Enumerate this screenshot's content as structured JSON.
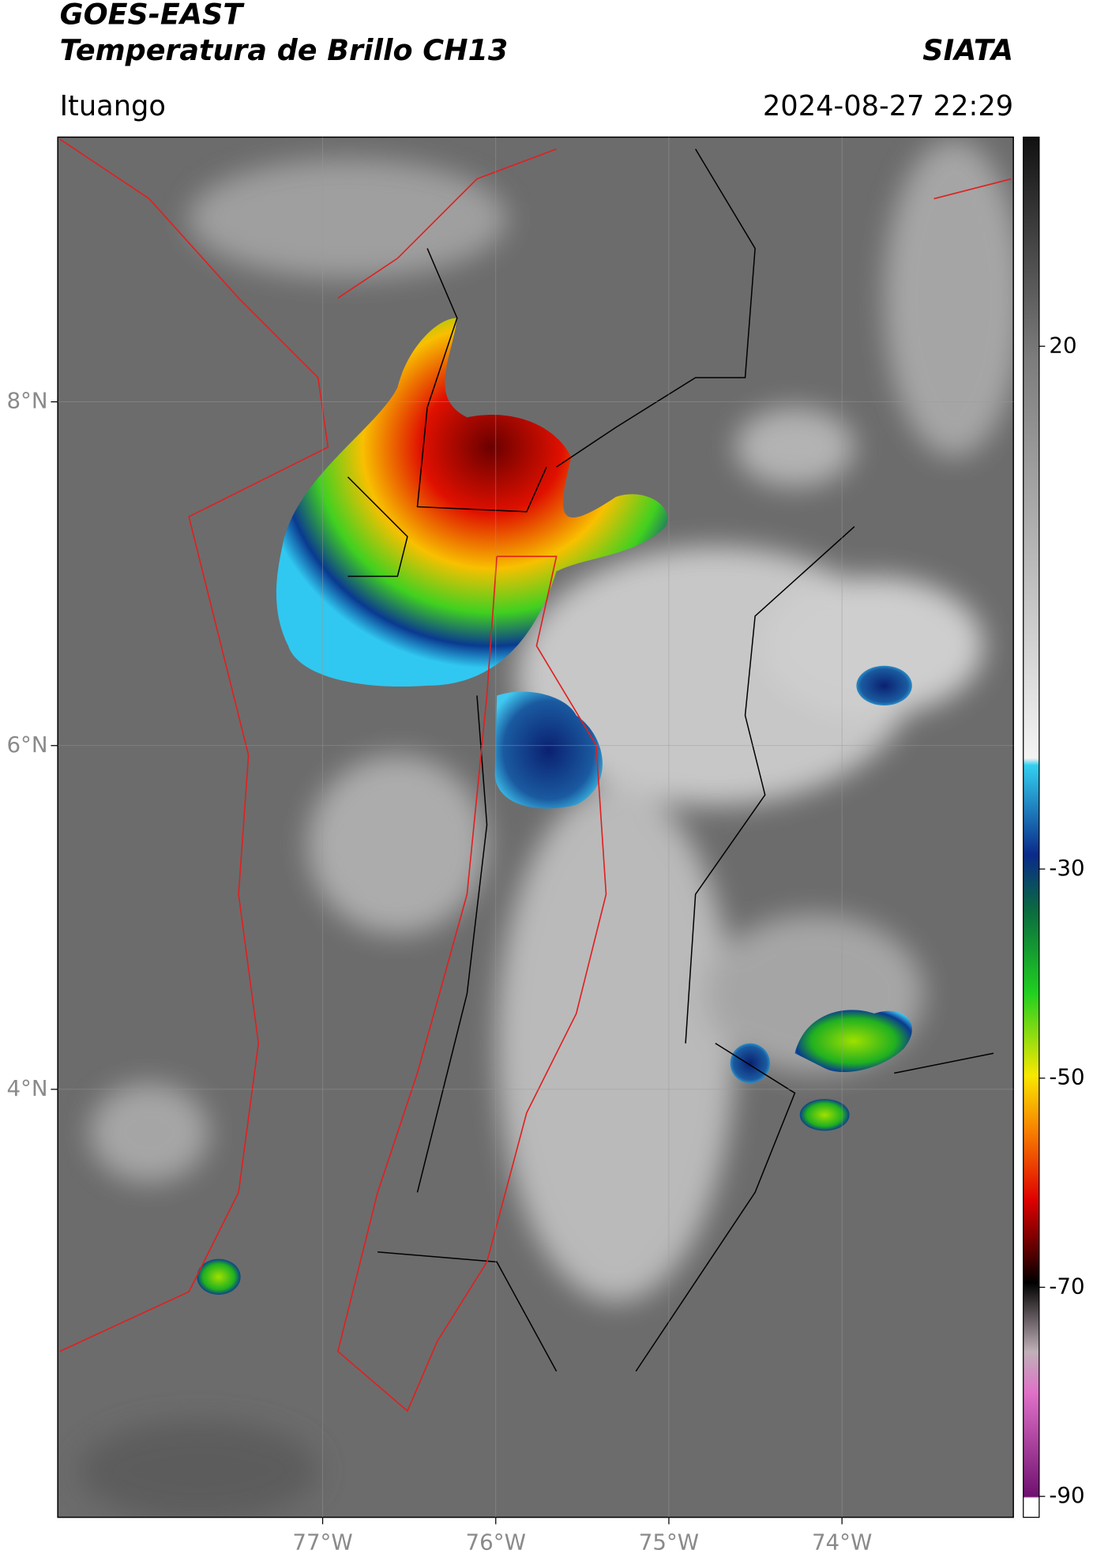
{
  "header": {
    "title": "GOES-EAST",
    "subtitle": "Temperatura de Brillo CH13",
    "agency": "SIATA",
    "location": "Ituango",
    "timestamp": "2024-08-27 22:29"
  },
  "map": {
    "xlim": [
      -78.53,
      -73.01
    ],
    "ylim": [
      1.51,
      9.54
    ],
    "xticks": [
      {
        "value": -77,
        "label": "77°W"
      },
      {
        "value": -76,
        "label": "76°W"
      },
      {
        "value": -75,
        "label": "75°W"
      },
      {
        "value": -74,
        "label": "74°W"
      }
    ],
    "yticks": [
      {
        "value": 8,
        "label": "8°N"
      },
      {
        "value": 6,
        "label": "6°N"
      },
      {
        "value": 4,
        "label": "4°N"
      }
    ],
    "grid": true
  },
  "colorbar": {
    "ylim": [
      -92,
      40
    ],
    "yticks": [
      20,
      -30,
      -50,
      -70,
      -90
    ]
  }
}
